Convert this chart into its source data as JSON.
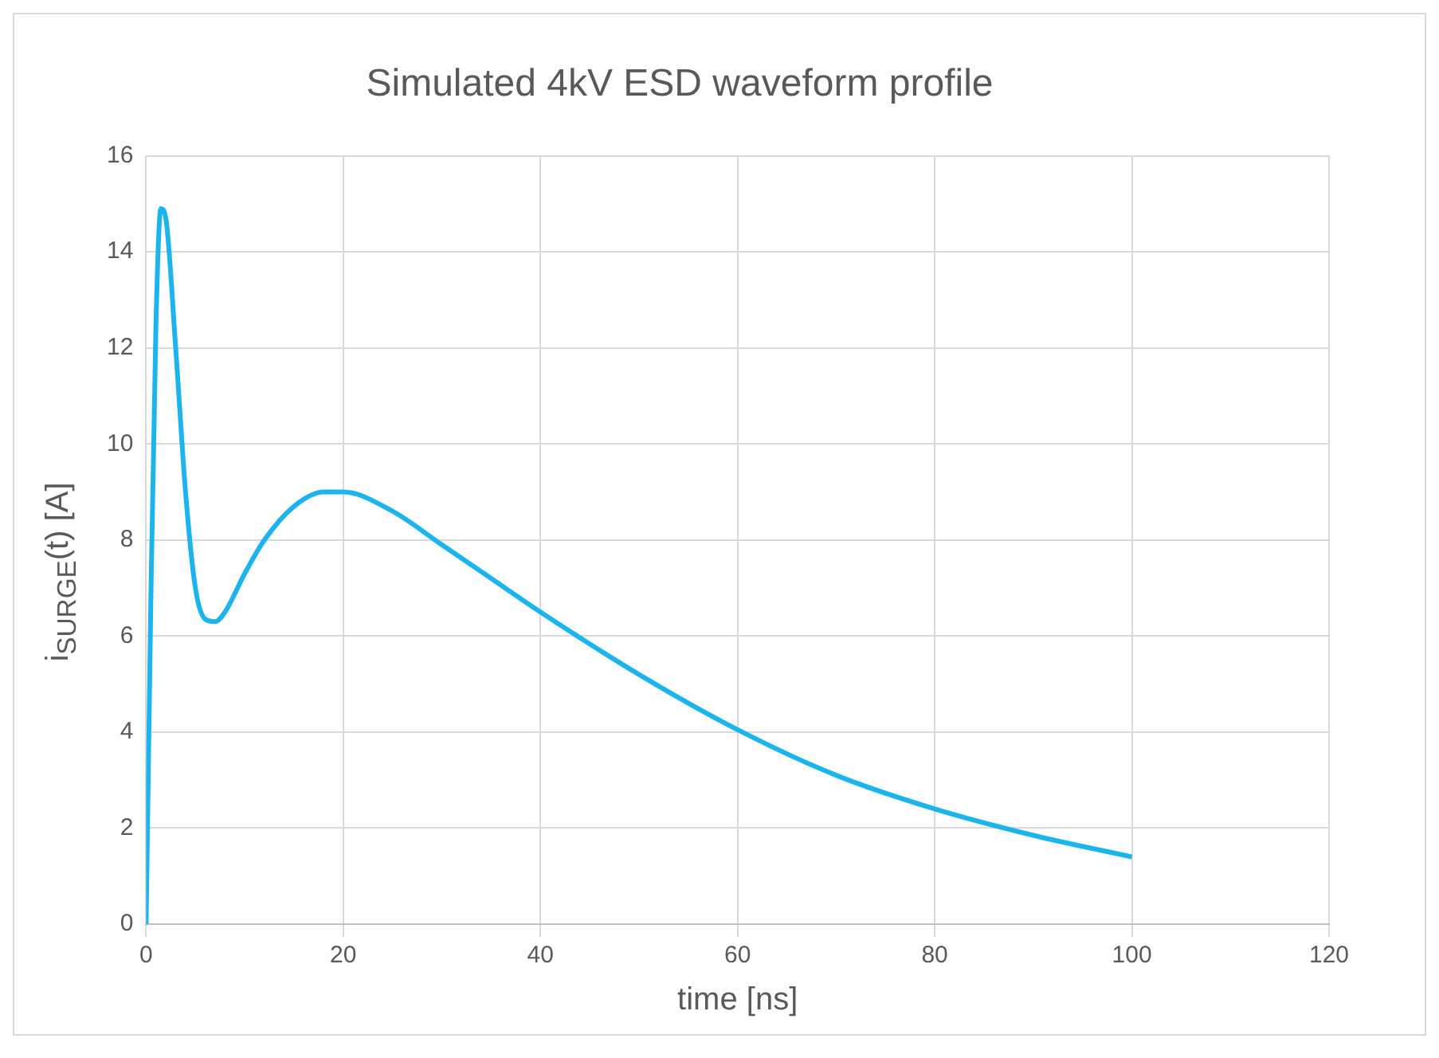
{
  "chart_data": {
    "type": "line",
    "title": "Simulated 4kV ESD waveform profile",
    "xlabel": "time [ns]",
    "ylabel": "i$_{SURGE}$(t) [A]",
    "x": [
      0,
      0.5,
      1,
      1.5,
      2,
      3,
      4,
      5,
      6,
      7,
      8,
      10,
      12,
      15,
      18,
      20,
      25,
      30,
      35,
      40,
      50,
      60,
      70,
      80,
      90,
      100
    ],
    "series": [
      {
        "color": "#1cb4ec",
        "values": [
          0,
          7,
          12.5,
          14.9,
          14.7,
          12,
          9,
          7,
          6.35,
          6.3,
          6.5,
          7.3,
          8,
          8.7,
          9,
          9,
          8.6,
          7.9,
          7.2,
          6.5,
          5.2,
          4.05,
          3.1,
          2.4,
          1.85,
          1.4
        ]
      }
    ],
    "xlim": [
      0,
      120
    ],
    "xticks": [
      0,
      20,
      40,
      60,
      80,
      100,
      120
    ],
    "ylim": [
      0,
      16
    ],
    "yticks": [
      0,
      2,
      4,
      6,
      8,
      10,
      12,
      14,
      16
    ],
    "grid": true,
    "legend": false,
    "marker": "none",
    "line_style": "solid"
  }
}
